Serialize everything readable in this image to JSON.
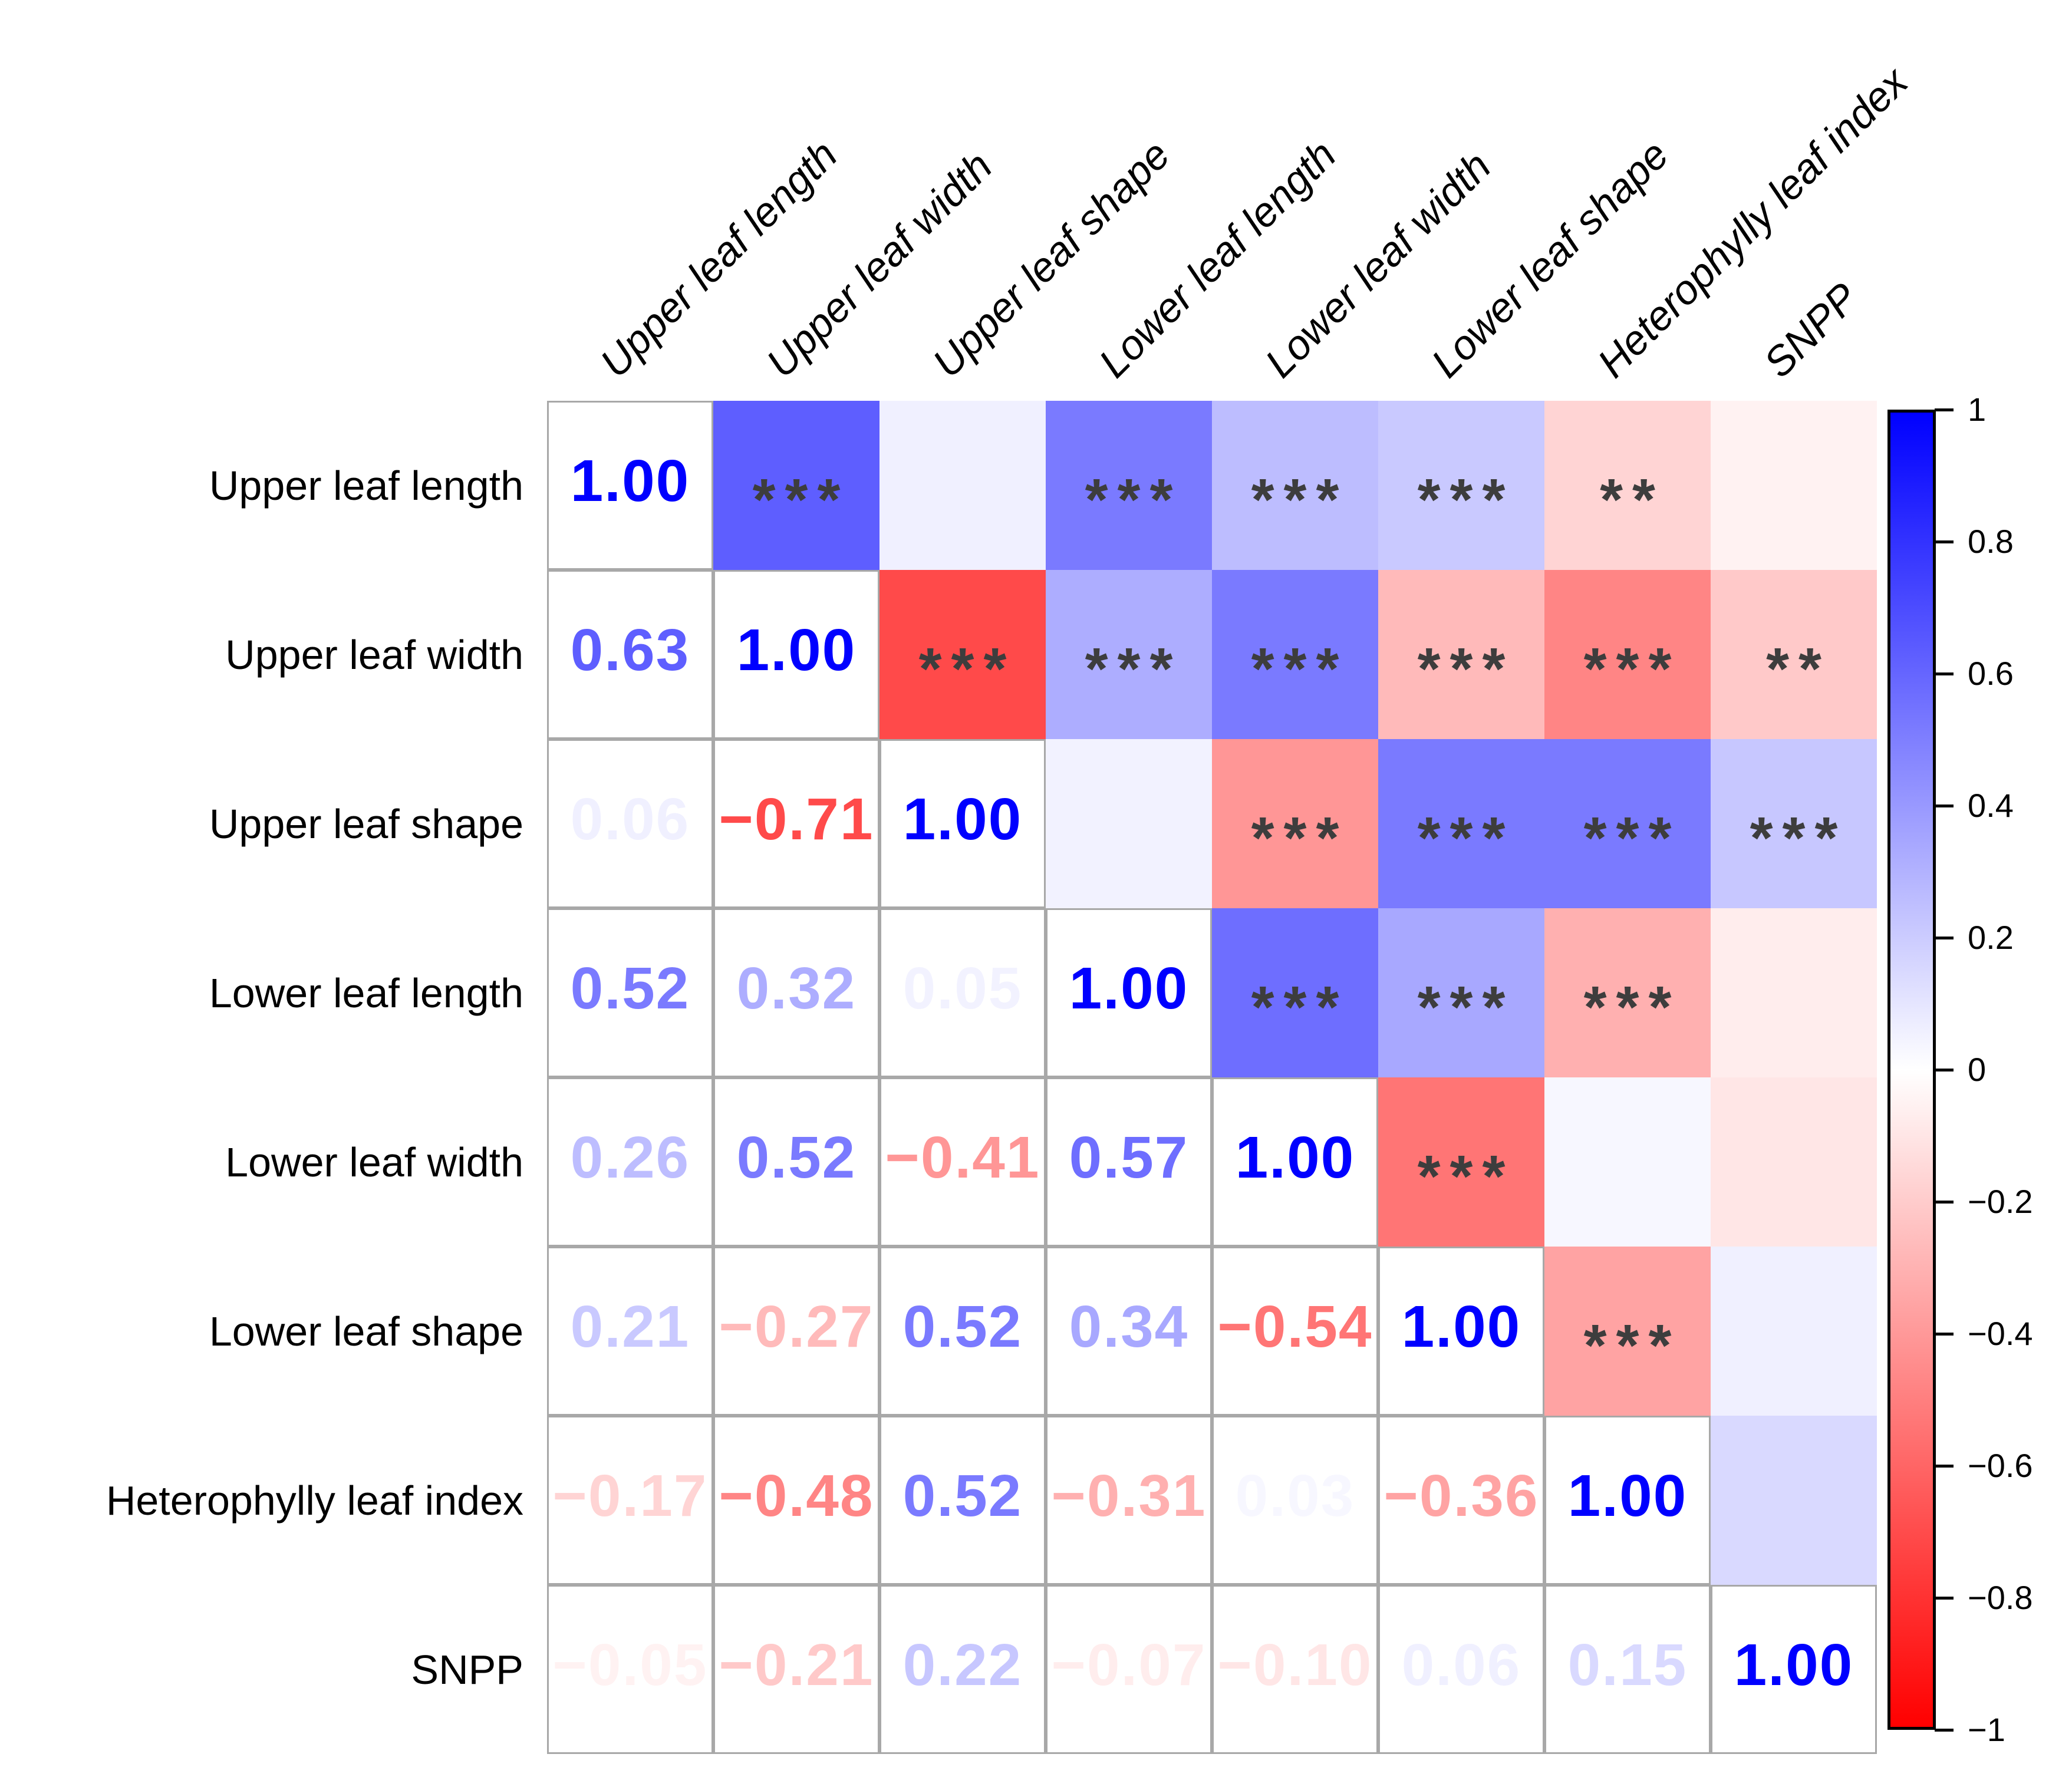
{
  "chart_data": {
    "type": "heatmap",
    "subtype": "correlation-matrix",
    "title": "",
    "variables": [
      "Upper leaf length",
      "Upper leaf width",
      "Upper leaf shape",
      "Lower leaf length",
      "Lower leaf width",
      "Lower leaf shape",
      "Heterophylly leaf index",
      "SNPP"
    ],
    "matrix": [
      [
        1.0,
        0.63,
        0.06,
        0.52,
        0.26,
        0.21,
        -0.17,
        -0.05
      ],
      [
        0.63,
        1.0,
        -0.71,
        0.32,
        0.52,
        -0.27,
        -0.48,
        -0.21
      ],
      [
        0.06,
        -0.71,
        1.0,
        0.05,
        -0.41,
        0.52,
        0.52,
        0.22
      ],
      [
        0.52,
        0.32,
        0.05,
        1.0,
        0.57,
        0.34,
        -0.31,
        -0.07
      ],
      [
        0.26,
        0.52,
        -0.41,
        0.57,
        1.0,
        -0.54,
        0.03,
        -0.1
      ],
      [
        0.21,
        -0.27,
        0.52,
        0.34,
        -0.54,
        1.0,
        -0.36,
        0.06
      ],
      [
        -0.17,
        -0.48,
        0.52,
        -0.31,
        0.03,
        -0.36,
        1.0,
        0.15
      ],
      [
        -0.05,
        -0.21,
        0.22,
        -0.07,
        -0.1,
        0.06,
        0.15,
        1.0
      ]
    ],
    "significance_upper": [
      [
        "",
        "***",
        "",
        "***",
        "***",
        "***",
        "**",
        ""
      ],
      [
        "",
        "",
        "***",
        "***",
        "***",
        "***",
        "***",
        "**"
      ],
      [
        "",
        "",
        "",
        "",
        "***",
        "***",
        "***",
        "***"
      ],
      [
        "",
        "",
        "",
        "",
        "***",
        "***",
        "***",
        ""
      ],
      [
        "",
        "",
        "",
        "",
        "",
        "***",
        "",
        ""
      ],
      [
        "",
        "",
        "",
        "",
        "",
        "",
        "***",
        ""
      ],
      [
        "",
        "",
        "",
        "",
        "",
        "",
        "",
        ""
      ],
      [
        "",
        "",
        "",
        "",
        "",
        "",
        "",
        ""
      ]
    ],
    "layout_notes": {
      "lower_triangle": "numeric correlation values",
      "diagonal": "1.00",
      "upper_triangle": "colored cells with significance stars",
      "grid": "gray borders on white lower-triangle cells only"
    },
    "colorbar": {
      "min": -1,
      "max": 1,
      "position": "right",
      "tick_labels": [
        "1",
        "0.8",
        "0.6",
        "0.4",
        "0.2",
        "0",
        "−0.2",
        "−0.4",
        "−0.6",
        "−0.8",
        "−1"
      ],
      "gradient": [
        "#0000ff",
        "#ffffff",
        "#ff0000"
      ]
    },
    "colors": {
      "positive": "#0000ff",
      "negative": "#ff0000",
      "zero": "#ffffff",
      "star": "#3d3d3d",
      "grid_line": "#a8a8a8",
      "label_text": "#000000"
    }
  }
}
